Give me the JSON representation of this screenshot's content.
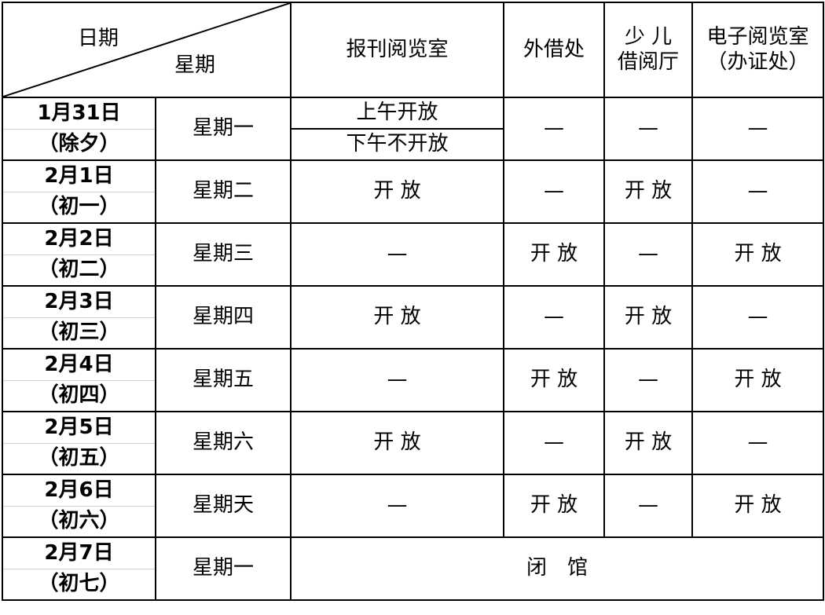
{
  "header": {
    "date_label": "日期",
    "weekday_label": "星期",
    "col_newspaper": "报刊阅览室",
    "col_lending": "外借处",
    "col_children": "少 儿\n借阅厅",
    "col_children_1": "少 儿",
    "col_children_2": "借阅厅",
    "col_digital_1": "电子阅览室",
    "col_digital_2": "（办证处）"
  },
  "rows": [
    {
      "date": "1月31日",
      "lunar": "（除夕）",
      "weekday": "星期一",
      "newspaper_am": "上午开放",
      "newspaper_pm": "下午不开放",
      "lending": "—",
      "children": "—",
      "digital": "—"
    },
    {
      "date": "2月1日",
      "lunar": "（初一）",
      "weekday": "星期二",
      "newspaper": "开 放",
      "lending": "—",
      "children": "开 放",
      "digital": "—"
    },
    {
      "date": "2月2日",
      "lunar": "（初二）",
      "weekday": "星期三",
      "newspaper": "—",
      "lending": "开 放",
      "children": "—",
      "digital": "开 放"
    },
    {
      "date": "2月3日",
      "lunar": "（初三）",
      "weekday": "星期四",
      "newspaper": "开 放",
      "lending": "—",
      "children": "开 放",
      "digital": "—"
    },
    {
      "date": "2月4日",
      "lunar": "（初四）",
      "weekday": "星期五",
      "newspaper": "—",
      "lending": "开 放",
      "children": "—",
      "digital": "开 放"
    },
    {
      "date": "2月5日",
      "lunar": "（初五）",
      "weekday": "星期六",
      "newspaper": "开 放",
      "lending": "—",
      "children": "开 放",
      "digital": "—"
    },
    {
      "date": "2月6日",
      "lunar": "（初六）",
      "weekday": "星期天",
      "newspaper": "—",
      "lending": "开 放",
      "children": "—",
      "digital": "开 放"
    },
    {
      "date": "2月7日",
      "lunar": "（初七）",
      "weekday": "星期一",
      "closed": "闭　馆"
    }
  ]
}
